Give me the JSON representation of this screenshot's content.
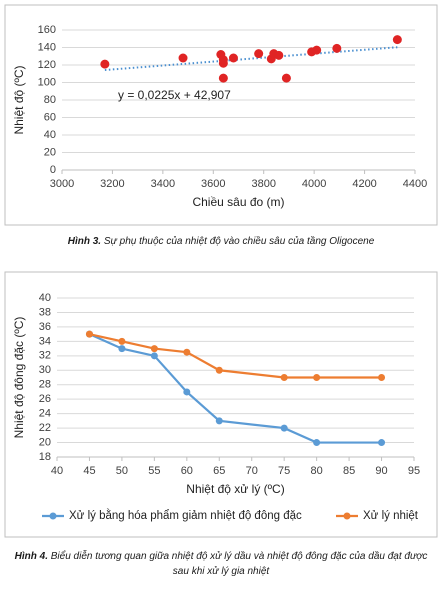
{
  "chart_data": [
    {
      "type": "scatter",
      "x": [
        3170,
        3480,
        3630,
        3640,
        3640,
        3640,
        3680,
        3780,
        3830,
        3840,
        3860,
        3890,
        3990,
        4010,
        4090,
        4330
      ],
      "values": [
        121,
        128,
        132,
        122,
        126,
        105,
        128,
        133,
        127,
        133,
        131,
        105,
        135,
        137,
        139,
        149
      ],
      "color": "#e02424",
      "xlim": [
        3000,
        4400
      ],
      "xticks": [
        3000,
        3200,
        3400,
        3600,
        3800,
        4000,
        4200,
        4400
      ],
      "ylim": [
        0,
        160
      ],
      "yticks": [
        0,
        20,
        40,
        60,
        80,
        100,
        120,
        140,
        160
      ],
      "grid": true,
      "x_label": "Chiều sâu đo (m)",
      "y_label": "Nhiệt độ (ºC)",
      "trendline": {
        "label": "y = 0,0225x + 42,907",
        "slope": 0.0225,
        "intercept": 42.907,
        "color": "#4a8fd0"
      },
      "caption_label": "Hình 3.",
      "caption": "Sự phụ thuộc của nhiệt độ vào chiều sâu của tầng Oligocene"
    },
    {
      "type": "line",
      "x": [
        45,
        50,
        55,
        60,
        65,
        75,
        80,
        90
      ],
      "series": [
        {
          "name": "Xử lý bằng hóa phẩm giảm nhiệt độ đông đặc",
          "color": "#5b9bd5",
          "values": [
            35,
            33,
            32,
            27,
            23,
            22,
            20,
            20
          ]
        },
        {
          "name": "Xử lý nhiệt",
          "color": "#ed7d31",
          "values": [
            35,
            34,
            33,
            32.5,
            30,
            29,
            29,
            29
          ]
        }
      ],
      "xlim": [
        40,
        95
      ],
      "xticks": [
        40,
        45,
        50,
        55,
        60,
        65,
        70,
        75,
        80,
        85,
        90,
        95
      ],
      "ylim": [
        18,
        40
      ],
      "yticks": [
        18,
        20,
        22,
        24,
        26,
        28,
        30,
        32,
        34,
        36,
        38,
        40
      ],
      "grid": true,
      "legend": "bottom",
      "x_label": "Nhiệt độ xử lý (ºC)",
      "y_label": "Nhiệt độ đông đặc (ºC)",
      "caption_label": "Hình 4.",
      "caption": "Biểu diễn tương quan giữa nhiệt độ xử lý dầu và nhiệt độ đông đặc của dầu đạt được sau khi xử lý gia nhiệt"
    }
  ]
}
